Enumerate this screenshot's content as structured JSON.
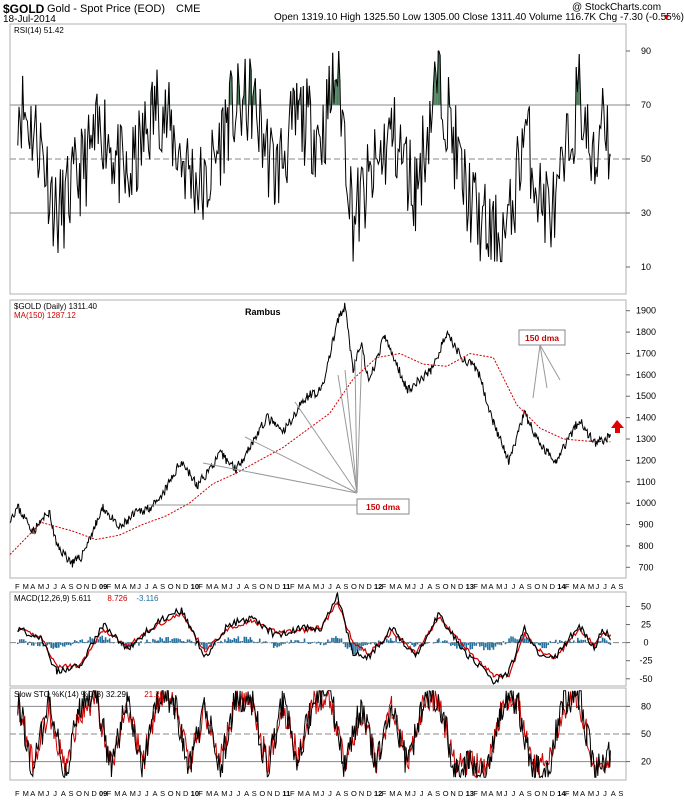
{
  "header": {
    "symbol": "$GOLD",
    "name": "Gold - Spot Price (EOD)",
    "exchange": "CME",
    "date": "18-Jul-2014",
    "quote": "Open 1319.10  High 1325.50  Low 1305.00  Close 1311.40  Volume 116.7K  Chg -7.30 (-0.55%)",
    "quote_arrow": "▼",
    "copyright": "@ StockCharts.com"
  },
  "colors": {
    "price": "#000000",
    "ma": "#cc0000",
    "macd_hist": "#1f6f9f",
    "rsi_fill": "#4f7f5f",
    "callout_red": "#cc0000",
    "arrow": "#e00000",
    "grid": "#9a9a9a"
  },
  "chart_data": [
    {
      "panel": "rsi",
      "type": "line",
      "title": "RSI(14) 51.42",
      "legend": [
        "RSI(14) 51.42"
      ],
      "ylim": [
        0,
        100
      ],
      "y_ticks": [
        10,
        30,
        50,
        70,
        90
      ],
      "reference_lines": [
        30,
        50,
        70
      ],
      "grid": true,
      "series": [
        {
          "name": "RSI(14)",
          "x": [
            "2008-03",
            "2008-06",
            "2008-08",
            "2008-11",
            "2009-02",
            "2009-05",
            "2009-09",
            "2009-12",
            "2010-03",
            "2010-06",
            "2010-09",
            "2010-12",
            "2011-03",
            "2011-06",
            "2011-08",
            "2011-10",
            "2011-12",
            "2012-03",
            "2012-06",
            "2012-09",
            "2012-12",
            "2013-02",
            "2013-04",
            "2013-06",
            "2013-08",
            "2013-10",
            "2013-12",
            "2014-03",
            "2014-05",
            "2014-06",
            "2014-07"
          ],
          "values": [
            72,
            55,
            28,
            45,
            62,
            40,
            72,
            50,
            38,
            66,
            72,
            44,
            66,
            58,
            84,
            28,
            40,
            60,
            38,
            82,
            42,
            28,
            20,
            24,
            62,
            35,
            30,
            75,
            42,
            75,
            51
          ]
        }
      ]
    },
    {
      "panel": "price",
      "type": "line",
      "title": "$GOLD (Daily) 1311.40",
      "legend": [
        "$GOLD (Daily) 1311.40",
        "MA(150) 1287.12"
      ],
      "annotation_title": "Rambus",
      "ylim": [
        650,
        1950
      ],
      "y_ticks": [
        700,
        800,
        900,
        1000,
        1100,
        1200,
        1300,
        1400,
        1500,
        1600,
        1700,
        1800,
        1900
      ],
      "grid": false,
      "series": [
        {
          "name": "$GOLD (Daily)",
          "x": [
            "2008-02",
            "2008-03",
            "2008-05",
            "2008-07",
            "2008-08",
            "2008-10",
            "2008-11",
            "2009-01",
            "2009-02",
            "2009-04",
            "2009-06",
            "2009-09",
            "2009-12",
            "2010-02",
            "2010-05",
            "2010-07",
            "2010-11",
            "2011-01",
            "2011-04",
            "2011-06",
            "2011-08",
            "2011-09",
            "2011-10",
            "2011-11",
            "2011-12",
            "2012-02",
            "2012-05",
            "2012-08",
            "2012-10",
            "2012-12",
            "2013-02",
            "2013-04",
            "2013-06",
            "2013-08",
            "2013-10",
            "2013-12",
            "2014-03",
            "2014-05",
            "2014-07"
          ],
          "values": [
            930,
            980,
            870,
            960,
            800,
            720,
            740,
            900,
            980,
            880,
            950,
            1000,
            1200,
            1080,
            1230,
            1160,
            1400,
            1330,
            1500,
            1530,
            1850,
            1920,
            1620,
            1750,
            1560,
            1780,
            1530,
            1620,
            1790,
            1680,
            1620,
            1380,
            1190,
            1420,
            1270,
            1200,
            1390,
            1280,
            1311
          ]
        },
        {
          "name": "MA(150)",
          "x": [
            "2008-02",
            "2008-06",
            "2008-10",
            "2009-01",
            "2009-04",
            "2009-07",
            "2009-10",
            "2010-01",
            "2010-04",
            "2010-07",
            "2010-10",
            "2011-01",
            "2011-04",
            "2011-07",
            "2011-10",
            "2012-01",
            "2012-04",
            "2012-07",
            "2012-10",
            "2013-01",
            "2013-04",
            "2013-07",
            "2013-10",
            "2014-01",
            "2014-04",
            "2014-07"
          ],
          "values": [
            760,
            910,
            870,
            830,
            850,
            900,
            940,
            1000,
            1090,
            1140,
            1200,
            1260,
            1340,
            1420,
            1580,
            1680,
            1700,
            1650,
            1640,
            1700,
            1680,
            1460,
            1350,
            1300,
            1290,
            1287
          ]
        }
      ],
      "annotations": [
        "150 dma",
        "150 dma"
      ]
    },
    {
      "panel": "macd",
      "type": "line",
      "title": "MACD(12,26,9)",
      "legend": [
        "MACD(12,26,9) 5.611",
        "8.726",
        "-3.116"
      ],
      "ylim": [
        -60,
        70
      ],
      "y_ticks": [
        -50,
        -25,
        0,
        25,
        50
      ],
      "reference_lines": [
        0
      ],
      "grid": true,
      "series": [
        {
          "name": "MACD(12,26,9)",
          "x": [
            "2008-03",
            "2008-06",
            "2008-08",
            "2008-11",
            "2009-02",
            "2009-05",
            "2009-09",
            "2009-12",
            "2010-03",
            "2010-06",
            "2010-09",
            "2010-12",
            "2011-03",
            "2011-06",
            "2011-08",
            "2011-10",
            "2011-12",
            "2012-03",
            "2012-06",
            "2012-09",
            "2012-12",
            "2013-02",
            "2013-04",
            "2013-06",
            "2013-08",
            "2013-10",
            "2013-12",
            "2014-03",
            "2014-05",
            "2014-06",
            "2014-07"
          ],
          "values": [
            20,
            5,
            -40,
            -30,
            25,
            -10,
            30,
            45,
            -20,
            25,
            35,
            10,
            20,
            20,
            65,
            -15,
            -20,
            20,
            -20,
            40,
            -10,
            -30,
            -55,
            -40,
            20,
            -20,
            -20,
            25,
            -10,
            20,
            5.611
          ]
        },
        {
          "name": "8.726",
          "x": [
            "2008-03",
            "2008-06",
            "2008-08",
            "2008-11",
            "2009-02",
            "2009-05",
            "2009-09",
            "2009-12",
            "2010-03",
            "2010-06",
            "2010-09",
            "2010-12",
            "2011-03",
            "2011-06",
            "2011-08",
            "2011-10",
            "2011-12",
            "2012-03",
            "2012-06",
            "2012-09",
            "2012-12",
            "2013-02",
            "2013-04",
            "2013-06",
            "2013-08",
            "2013-10",
            "2013-12",
            "2014-03",
            "2014-05",
            "2014-06",
            "2014-07"
          ],
          "values": [
            18,
            8,
            -33,
            -32,
            18,
            -5,
            25,
            40,
            -12,
            20,
            30,
            15,
            16,
            22,
            55,
            0,
            -15,
            15,
            -15,
            35,
            -2,
            -25,
            -45,
            -45,
            12,
            -12,
            -22,
            20,
            -5,
            15,
            8.726
          ]
        },
        {
          "name": "-3.116",
          "type": "histogram",
          "x": [
            "2008-03",
            "2008-06",
            "2008-08",
            "2008-11",
            "2009-02",
            "2009-05",
            "2009-09",
            "2009-12",
            "2010-03",
            "2010-06",
            "2010-09",
            "2010-12",
            "2011-03",
            "2011-06",
            "2011-08",
            "2011-10",
            "2011-12",
            "2012-03",
            "2012-06",
            "2012-09",
            "2012-12",
            "2013-02",
            "2013-04",
            "2013-06",
            "2013-08",
            "2013-10",
            "2013-12",
            "2014-03",
            "2014-05",
            "2014-06",
            "2014-07"
          ],
          "values": [
            2,
            -3,
            -7,
            2,
            7,
            -5,
            5,
            5,
            -8,
            5,
            5,
            -5,
            4,
            -2,
            10,
            -15,
            -5,
            5,
            -5,
            5,
            -8,
            -5,
            -10,
            5,
            8,
            -8,
            2,
            5,
            -5,
            5,
            -3.116
          ]
        }
      ]
    },
    {
      "panel": "sto",
      "type": "line",
      "title": "Slow STO %K(14) %D(3)",
      "legend": [
        "Slow STO %K(14) %D(3) 32.29",
        "21.20"
      ],
      "ylim": [
        0,
        100
      ],
      "y_ticks": [
        20,
        50,
        80
      ],
      "reference_lines": [
        20,
        50,
        80
      ],
      "grid": true,
      "series": [
        {
          "name": "Slow STO %K(14) %D(3) 32.29",
          "x": [
            "2008-03",
            "2008-05",
            "2008-07",
            "2008-09",
            "2008-11",
            "2009-01",
            "2009-03",
            "2009-05",
            "2009-07",
            "2009-09",
            "2009-11",
            "2010-01",
            "2010-03",
            "2010-05",
            "2010-07",
            "2010-09",
            "2010-11",
            "2011-01",
            "2011-03",
            "2011-05",
            "2011-07",
            "2011-09",
            "2011-11",
            "2012-01",
            "2012-03",
            "2012-05",
            "2012-07",
            "2012-09",
            "2012-11",
            "2013-01",
            "2013-03",
            "2013-05",
            "2013-07",
            "2013-09",
            "2013-11",
            "2014-01",
            "2014-03",
            "2014-05",
            "2014-07"
          ],
          "values": [
            90,
            10,
            85,
            5,
            80,
            92,
            10,
            88,
            12,
            90,
            85,
            10,
            80,
            15,
            90,
            88,
            12,
            85,
            20,
            90,
            95,
            10,
            80,
            15,
            85,
            10,
            88,
            92,
            10,
            15,
            5,
            80,
            90,
            10,
            12,
            85,
            90,
            10,
            32.29
          ]
        },
        {
          "name": "21.20",
          "x": [
            "2008-03",
            "2008-05",
            "2008-07",
            "2008-09",
            "2008-11",
            "2009-01",
            "2009-03",
            "2009-05",
            "2009-07",
            "2009-09",
            "2009-11",
            "2010-01",
            "2010-03",
            "2010-05",
            "2010-07",
            "2010-09",
            "2010-11",
            "2011-01",
            "2011-03",
            "2011-05",
            "2011-07",
            "2011-09",
            "2011-11",
            "2012-01",
            "2012-03",
            "2012-05",
            "2012-07",
            "2012-09",
            "2012-11",
            "2013-01",
            "2013-03",
            "2013-05",
            "2013-07",
            "2013-09",
            "2013-11",
            "2014-01",
            "2014-03",
            "2014-05",
            "2014-07"
          ],
          "values": [
            85,
            18,
            78,
            12,
            72,
            88,
            18,
            82,
            18,
            85,
            82,
            18,
            75,
            22,
            85,
            84,
            18,
            80,
            25,
            85,
            90,
            18,
            75,
            20,
            80,
            16,
            82,
            88,
            16,
            18,
            10,
            75,
            86,
            16,
            18,
            80,
            86,
            16,
            21.2
          ]
        }
      ]
    }
  ],
  "x_axis": {
    "label_rows": [
      [
        "F",
        "M",
        "A",
        "M",
        "J",
        "J",
        "A",
        "S",
        "O",
        "N",
        "D",
        "09",
        "F",
        "M",
        "A",
        "M",
        "J",
        "J",
        "A",
        "S",
        "O",
        "N",
        "D",
        "10",
        "F",
        "M",
        "A",
        "M",
        "J",
        "J",
        "A",
        "S",
        "O",
        "N",
        "D",
        "11",
        "F",
        "M",
        "A",
        "M",
        "J",
        "J",
        "A",
        "S",
        "O",
        "N",
        "D",
        "12",
        "F",
        "M",
        "A",
        "M",
        "J",
        "J",
        "A",
        "S",
        "O",
        "N",
        "D",
        "13",
        "F",
        "M",
        "A",
        "M",
        "J",
        "J",
        "A",
        "S",
        "O",
        "N",
        "D",
        "14",
        "F",
        "M",
        "A",
        "M",
        "J",
        "J",
        "A",
        "S"
      ]
    ],
    "start": "2008-02",
    "end": "2014-09",
    "bold_labels": [
      "09",
      "10",
      "11",
      "12",
      "13",
      "14"
    ]
  }
}
